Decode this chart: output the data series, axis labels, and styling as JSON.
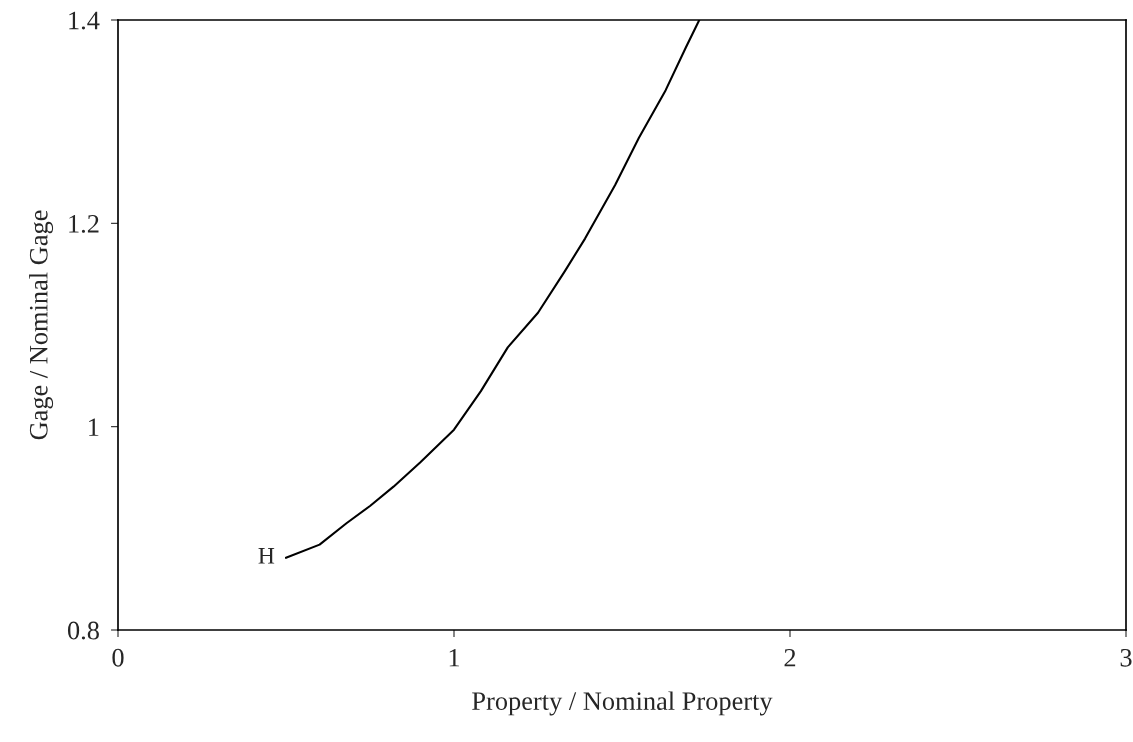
{
  "chart_data": {
    "type": "line",
    "xlabel": "Property / Nominal Property",
    "ylabel": "Gage / Nominal Gage",
    "x": [
      0.5,
      0.6,
      0.68,
      0.75,
      0.82,
      0.9,
      1.0,
      1.08,
      1.16,
      1.25,
      1.33,
      1.39,
      1.48,
      1.55,
      1.63,
      1.69,
      1.73
    ],
    "series": [
      {
        "color": "#000000",
        "values": [
          0.871,
          0.884,
          0.905,
          0.922,
          0.941,
          0.965,
          0.997,
          1.035,
          1.078,
          1.112,
          1.153,
          1.185,
          1.238,
          1.284,
          1.331,
          1.373,
          1.4
        ]
      }
    ],
    "annotations": [
      {
        "text": "H",
        "x": 0.5,
        "y": 0.871
      }
    ],
    "xlim": [
      0,
      3
    ],
    "xticks": [
      0,
      1,
      2,
      3
    ],
    "ylim": [
      0.8,
      1.4
    ],
    "yticks": [
      0.8,
      1,
      1.2,
      1.4
    ],
    "grid": false,
    "legend": false,
    "marker": "none",
    "line_style": "solid"
  }
}
